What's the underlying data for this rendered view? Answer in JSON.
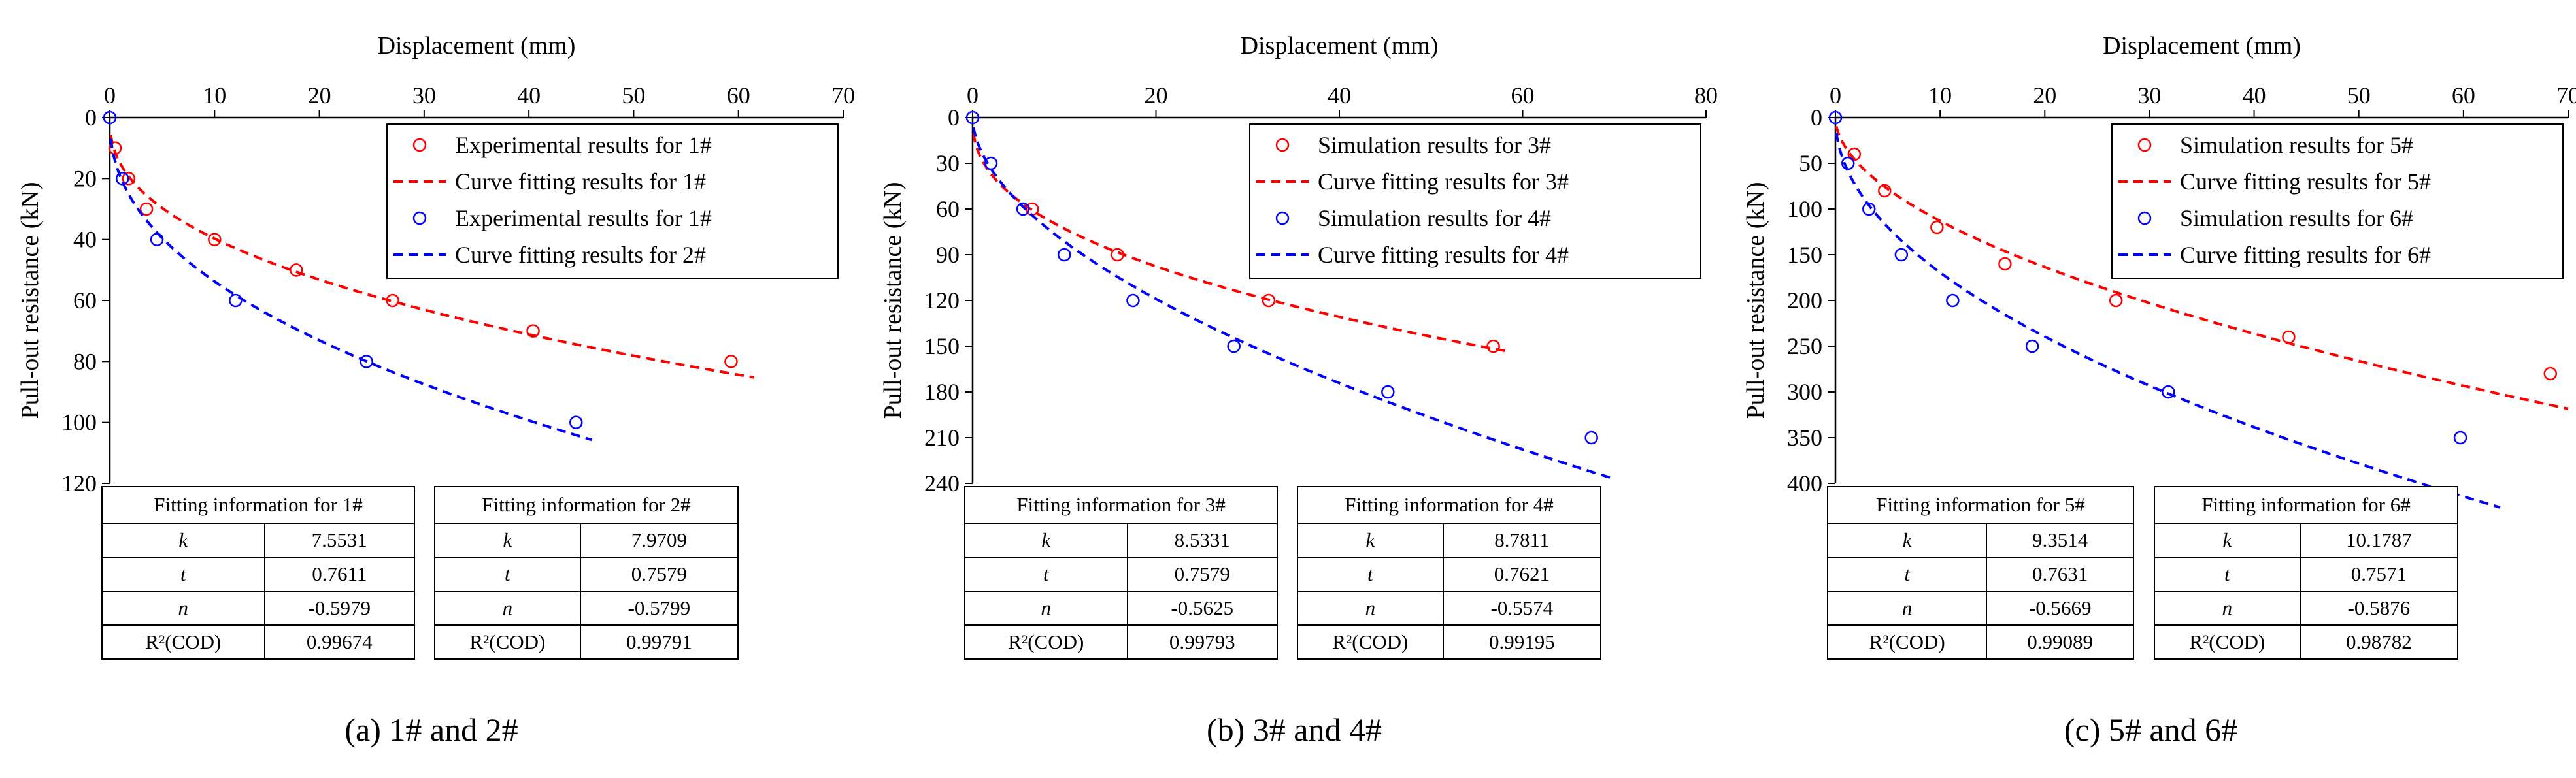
{
  "colors": {
    "red": "#ff0000",
    "blue": "#0000ff",
    "black": "#000000"
  },
  "chart_data": [
    {
      "type": "scatter",
      "caption": "(a) 1# and 2#",
      "xlabel": "Displacement (mm)",
      "ylabel": "Pull-out resistance (kN)",
      "xlim": [
        0,
        70
      ],
      "ylim": [
        0,
        120
      ],
      "y_inverted": true,
      "x_axis_position": "top",
      "xticks": [
        "0",
        "10",
        "20",
        "30",
        "40",
        "50",
        "60",
        "70"
      ],
      "yticks": [
        "0",
        "20",
        "40",
        "60",
        "80",
        "100",
        "120"
      ],
      "legend_position": "top-right",
      "series": [
        {
          "name": "Experimental results for  1#",
          "kind": "points",
          "color": "#ff0000",
          "x": [
            0.5,
            1.8,
            3.5,
            10.0,
            17.8,
            27.0,
            40.4,
            59.3
          ],
          "y": [
            10,
            20,
            30,
            40,
            50,
            60,
            70,
            80
          ]
        },
        {
          "name": "Curve fitting results for 1#",
          "kind": "curve",
          "color": "#ff0000",
          "k": 7.5531,
          "t": 0.7611,
          "n": -0.5979,
          "xrange": [
            0.1,
            61.5
          ]
        },
        {
          "name": "Experimental results for  1#",
          "kind": "points",
          "color": "#0000ff",
          "x": [
            1.2,
            4.5,
            12.0,
            24.5,
            44.5
          ],
          "y": [
            20,
            40,
            60,
            80,
            100
          ]
        },
        {
          "name": "Curve fitting results for 2#",
          "kind": "curve",
          "color": "#0000ff",
          "k": 7.9709,
          "t": 0.7579,
          "n": -0.5799,
          "xrange": [
            0.1,
            46.0
          ]
        }
      ],
      "fit_tables": [
        {
          "title": "Fitting information for 1#",
          "rows": [
            {
              "param": "k",
              "value": "7.5531"
            },
            {
              "param": "t",
              "value": "0.7611"
            },
            {
              "param": "n",
              "value": "-0.5979"
            },
            {
              "param": "R²(COD)",
              "value": "0.99674"
            }
          ]
        },
        {
          "title": "Fitting information for 2#",
          "rows": [
            {
              "param": "k",
              "value": "7.9709"
            },
            {
              "param": "t",
              "value": "0.7579"
            },
            {
              "param": "n",
              "value": "-0.5799"
            },
            {
              "param": "R²(COD)",
              "value": "0.99791"
            }
          ]
        }
      ]
    },
    {
      "type": "scatter",
      "caption": "(b) 3# and 4#",
      "xlabel": "Displacement (mm)",
      "ylabel": "Pull-out resistance (kN)",
      "xlim": [
        0,
        80
      ],
      "ylim": [
        0,
        240
      ],
      "y_inverted": true,
      "x_axis_position": "top",
      "xticks": [
        "0",
        "20",
        "40",
        "60",
        "80"
      ],
      "yticks": [
        "0",
        "30",
        "60",
        "90",
        "120",
        "150",
        "180",
        "210",
        "240"
      ],
      "legend_position": "top-right",
      "series": [
        {
          "name": "Simulation results for  3#",
          "kind": "points",
          "color": "#ff0000",
          "x": [
            6.5,
            15.8,
            32.3,
            56.8
          ],
          "y": [
            60,
            90,
            120,
            150
          ]
        },
        {
          "name": "Curve fitting results for 3#",
          "kind": "curve",
          "color": "#ff0000",
          "k": 8.5331,
          "t": 0.7579,
          "n": -0.5625,
          "xrange": [
            0.1,
            58.5
          ]
        },
        {
          "name": "Simulation results for  4#",
          "kind": "points",
          "color": "#0000ff",
          "x": [
            2.0,
            5.5,
            10.0,
            17.5,
            28.5,
            45.3,
            67.5
          ],
          "y": [
            30,
            60,
            90,
            120,
            150,
            180,
            210
          ]
        },
        {
          "name": "Curve fitting results for 4#",
          "kind": "curve",
          "color": "#0000ff",
          "k": 8.7811,
          "t": 0.7621,
          "n": -0.5574,
          "xrange": [
            0.1,
            70.0
          ]
        }
      ],
      "fit_tables": [
        {
          "title": "Fitting information for 3#",
          "rows": [
            {
              "param": "k",
              "value": "8.5331"
            },
            {
              "param": "t",
              "value": "0.7579"
            },
            {
              "param": "n",
              "value": "-0.5625"
            },
            {
              "param": "R²(COD)",
              "value": "0.99793"
            }
          ]
        },
        {
          "title": "Fitting information for 4#",
          "rows": [
            {
              "param": "k",
              "value": "8.7811"
            },
            {
              "param": "t",
              "value": "0.7621"
            },
            {
              "param": "n",
              "value": "-0.5574"
            },
            {
              "param": "R²(COD)",
              "value": "0.99195"
            }
          ]
        }
      ]
    },
    {
      "type": "scatter",
      "caption": "(c) 5# and 6#",
      "xlabel": "Displacement (mm)",
      "ylabel": "Pull-out resistance (kN)",
      "xlim": [
        0,
        70
      ],
      "ylim": [
        0,
        400
      ],
      "y_inverted": true,
      "x_axis_position": "top",
      "xticks": [
        "0",
        "10",
        "20",
        "30",
        "40",
        "50",
        "60",
        "70"
      ],
      "yticks": [
        "0",
        "50",
        "100",
        "150",
        "200",
        "250",
        "300",
        "350",
        "400"
      ],
      "legend_position": "top-right",
      "series": [
        {
          "name": "Simulation results for  5#",
          "kind": "points",
          "color": "#ff0000",
          "x": [
            1.8,
            4.7,
            9.7,
            16.2,
            26.8,
            43.3,
            68.3
          ],
          "y": [
            40,
            80,
            120,
            160,
            200,
            240,
            280
          ]
        },
        {
          "name": "Curve fitting results for 5#",
          "kind": "curve",
          "color": "#ff0000",
          "k": 9.3514,
          "t": 0.7631,
          "n": -0.5669,
          "xrange": [
            0.1,
            70.0
          ]
        },
        {
          "name": "Simulation results for  6#",
          "kind": "points",
          "color": "#0000ff",
          "x": [
            1.2,
            3.2,
            6.3,
            11.2,
            18.8,
            31.8,
            59.7
          ],
          "y": [
            50,
            100,
            150,
            200,
            250,
            300,
            350
          ]
        },
        {
          "name": "Curve fitting results for 6#",
          "kind": "curve",
          "color": "#0000ff",
          "k": 10.1787,
          "t": 0.7571,
          "n": -0.5876,
          "xrange": [
            0.1,
            63.5
          ]
        }
      ],
      "fit_tables": [
        {
          "title": "Fitting information for 5#",
          "rows": [
            {
              "param": "k",
              "value": "9.3514"
            },
            {
              "param": "t",
              "value": "0.7631"
            },
            {
              "param": "n",
              "value": "-0.5669"
            },
            {
              "param": "R²(COD)",
              "value": "0.99089"
            }
          ]
        },
        {
          "title": "Fitting information for 6#",
          "rows": [
            {
              "param": "k",
              "value": "10.1787"
            },
            {
              "param": "t",
              "value": "0.7571"
            },
            {
              "param": "n",
              "value": "-0.5876"
            },
            {
              "param": "R²(COD)",
              "value": "0.98782"
            }
          ]
        }
      ]
    }
  ]
}
